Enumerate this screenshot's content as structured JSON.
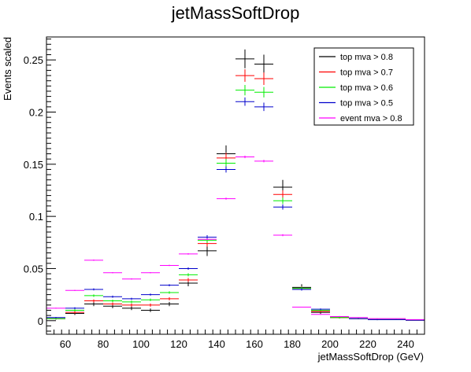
{
  "chart_data": {
    "type": "scatter",
    "title": "jetMassSoftDrop",
    "xlabel": "jetMassSoftDrop (GeV)",
    "ylabel": "Events scaled",
    "xlim": [
      50,
      250
    ],
    "ylim": [
      -0.013,
      0.272
    ],
    "x_ticks": [
      60,
      80,
      100,
      120,
      140,
      160,
      180,
      200,
      220,
      240
    ],
    "y_ticks": [
      0,
      0.05,
      0.1,
      0.15,
      0.2,
      0.25
    ],
    "y_tick_labels": [
      "0",
      "0.05",
      "0.1",
      "0.15",
      "0.2",
      "0.25"
    ],
    "bin_width": 10,
    "x": [
      55,
      65,
      75,
      85,
      95,
      105,
      115,
      125,
      135,
      145,
      155,
      165,
      175,
      185,
      195,
      205,
      215,
      225,
      235,
      245
    ],
    "legend_position": "top-right",
    "grid": false,
    "series": [
      {
        "name": "top mva > 0.8",
        "color": "#000000",
        "values": [
          0.002,
          0.007,
          0.016,
          0.014,
          0.012,
          0.01,
          0.016,
          0.036,
          0.067,
          0.16,
          0.251,
          0.246,
          0.128,
          0.032,
          0.008,
          0.003,
          0.002,
          0.001,
          0.001,
          0.0005
        ],
        "errors": [
          0.001,
          0.0015,
          0.002,
          0.002,
          0.0018,
          0.0017,
          0.002,
          0.003,
          0.005,
          0.008,
          0.009,
          0.009,
          0.007,
          0.003,
          0.0015,
          0.0008,
          0.0006,
          0.0005,
          0.0004,
          0.0003
        ]
      },
      {
        "name": "top mva > 0.7",
        "color": "#ff0000",
        "values": [
          0.002,
          0.008,
          0.019,
          0.016,
          0.015,
          0.015,
          0.021,
          0.039,
          0.074,
          0.156,
          0.235,
          0.232,
          0.121,
          0.031,
          0.009,
          0.003,
          0.002,
          0.001,
          0.001,
          0.0005
        ],
        "errors": [
          0.0008,
          0.0012,
          0.0015,
          0.0015,
          0.0015,
          0.0015,
          0.0015,
          0.002,
          0.003,
          0.005,
          0.006,
          0.006,
          0.004,
          0.002,
          0.001,
          0.0006,
          0.0005,
          0.0004,
          0.0003,
          0.0003
        ]
      },
      {
        "name": "top mva > 0.6",
        "color": "#00ee00",
        "values": [
          0.002,
          0.01,
          0.024,
          0.019,
          0.018,
          0.02,
          0.027,
          0.044,
          0.077,
          0.151,
          0.221,
          0.219,
          0.115,
          0.031,
          0.01,
          0.003,
          0.002,
          0.001,
          0.001,
          0.0005
        ],
        "errors": [
          0.0007,
          0.001,
          0.0012,
          0.0012,
          0.0012,
          0.0012,
          0.0012,
          0.0015,
          0.0025,
          0.004,
          0.005,
          0.005,
          0.003,
          0.0015,
          0.0008,
          0.0005,
          0.0004,
          0.0003,
          0.0003,
          0.0002
        ]
      },
      {
        "name": "top mva > 0.5",
        "color": "#0000cc",
        "values": [
          0.003,
          0.012,
          0.03,
          0.023,
          0.021,
          0.025,
          0.034,
          0.05,
          0.08,
          0.145,
          0.21,
          0.205,
          0.109,
          0.03,
          0.011,
          0.004,
          0.002,
          0.001,
          0.001,
          0.0005
        ],
        "errors": [
          0.0006,
          0.0009,
          0.001,
          0.001,
          0.001,
          0.001,
          0.001,
          0.0012,
          0.002,
          0.003,
          0.004,
          0.004,
          0.0025,
          0.0012,
          0.0007,
          0.0004,
          0.0003,
          0.0003,
          0.0002,
          0.0002
        ]
      },
      {
        "name": "event mva > 0.8",
        "color": "#ff00ff",
        "values": [
          0.012,
          0.029,
          0.058,
          0.046,
          0.04,
          0.046,
          0.053,
          0.064,
          0.078,
          0.117,
          0.157,
          0.153,
          0.082,
          0.013,
          0.006,
          0.004,
          0.003,
          0.002,
          0.002,
          0.001
        ],
        "errors": [
          0.0004,
          0.0005,
          0.0006,
          0.0006,
          0.0006,
          0.0006,
          0.0006,
          0.0007,
          0.0008,
          0.001,
          0.0012,
          0.0012,
          0.0009,
          0.0004,
          0.0003,
          0.0002,
          0.0002,
          0.0002,
          0.0001,
          0.0001
        ]
      }
    ]
  }
}
